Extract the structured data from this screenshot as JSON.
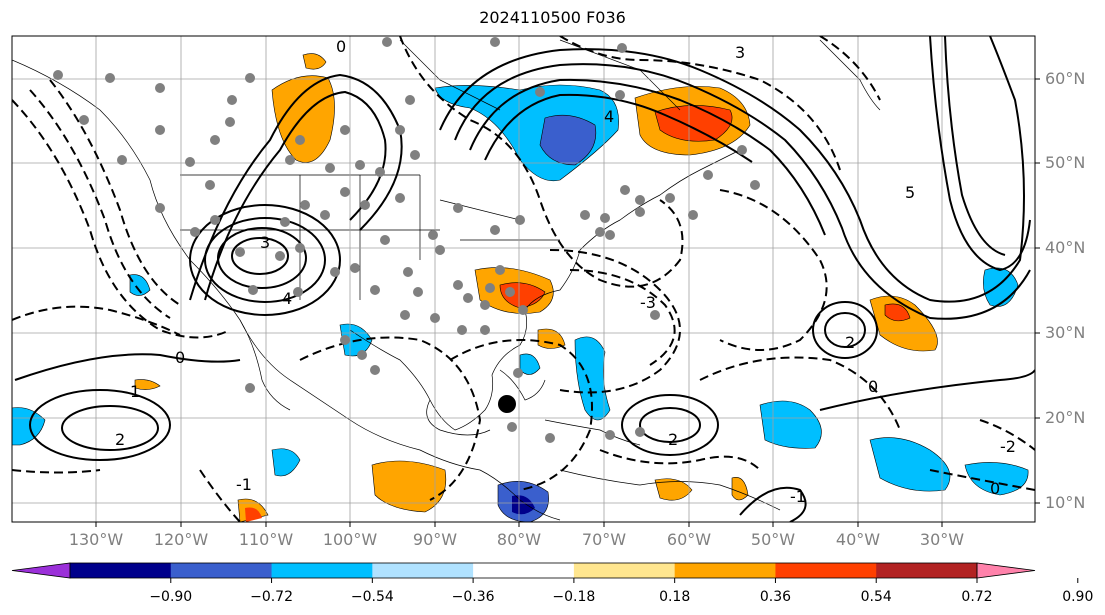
{
  "title": "2024110500 F036",
  "map": {
    "lon_range": [
      -140,
      -19
    ],
    "lat_range": [
      7.5,
      65
    ],
    "lon_ticks": [
      "130°W",
      "120°W",
      "110°W",
      "100°W",
      "90°W",
      "80°W",
      "70°W",
      "60°W",
      "50°W",
      "40°W",
      "30°W"
    ],
    "lat_ticks": [
      "60°N",
      "50°N",
      "40°N",
      "30°N",
      "20°N",
      "10°N"
    ],
    "contour_labels": [
      "0",
      "1",
      "-1",
      "2",
      "-2",
      "3",
      "-3",
      "4",
      "5",
      "0",
      "-2",
      "2"
    ],
    "colorbar": {
      "tick_labels": [
        "−0.90",
        "−0.72",
        "−0.54",
        "−0.36",
        "−0.18",
        "0.18",
        "0.36",
        "0.54",
        "0.72",
        "0.90"
      ],
      "colors": [
        "#9b30d9",
        "#00008b",
        "#3a5fcd",
        "#00bfff",
        "#b0e2ff",
        "#ffffff",
        "#ffe68f",
        "#ffa500",
        "#ff4000",
        "#b22222",
        "#ff82ab"
      ]
    },
    "colors": {
      "orange": "#ffa500",
      "red": "#ff4000",
      "cyan": "#00bfff",
      "blue": "#3a5fcd",
      "navy": "#00008b",
      "marker": "#808080"
    }
  }
}
